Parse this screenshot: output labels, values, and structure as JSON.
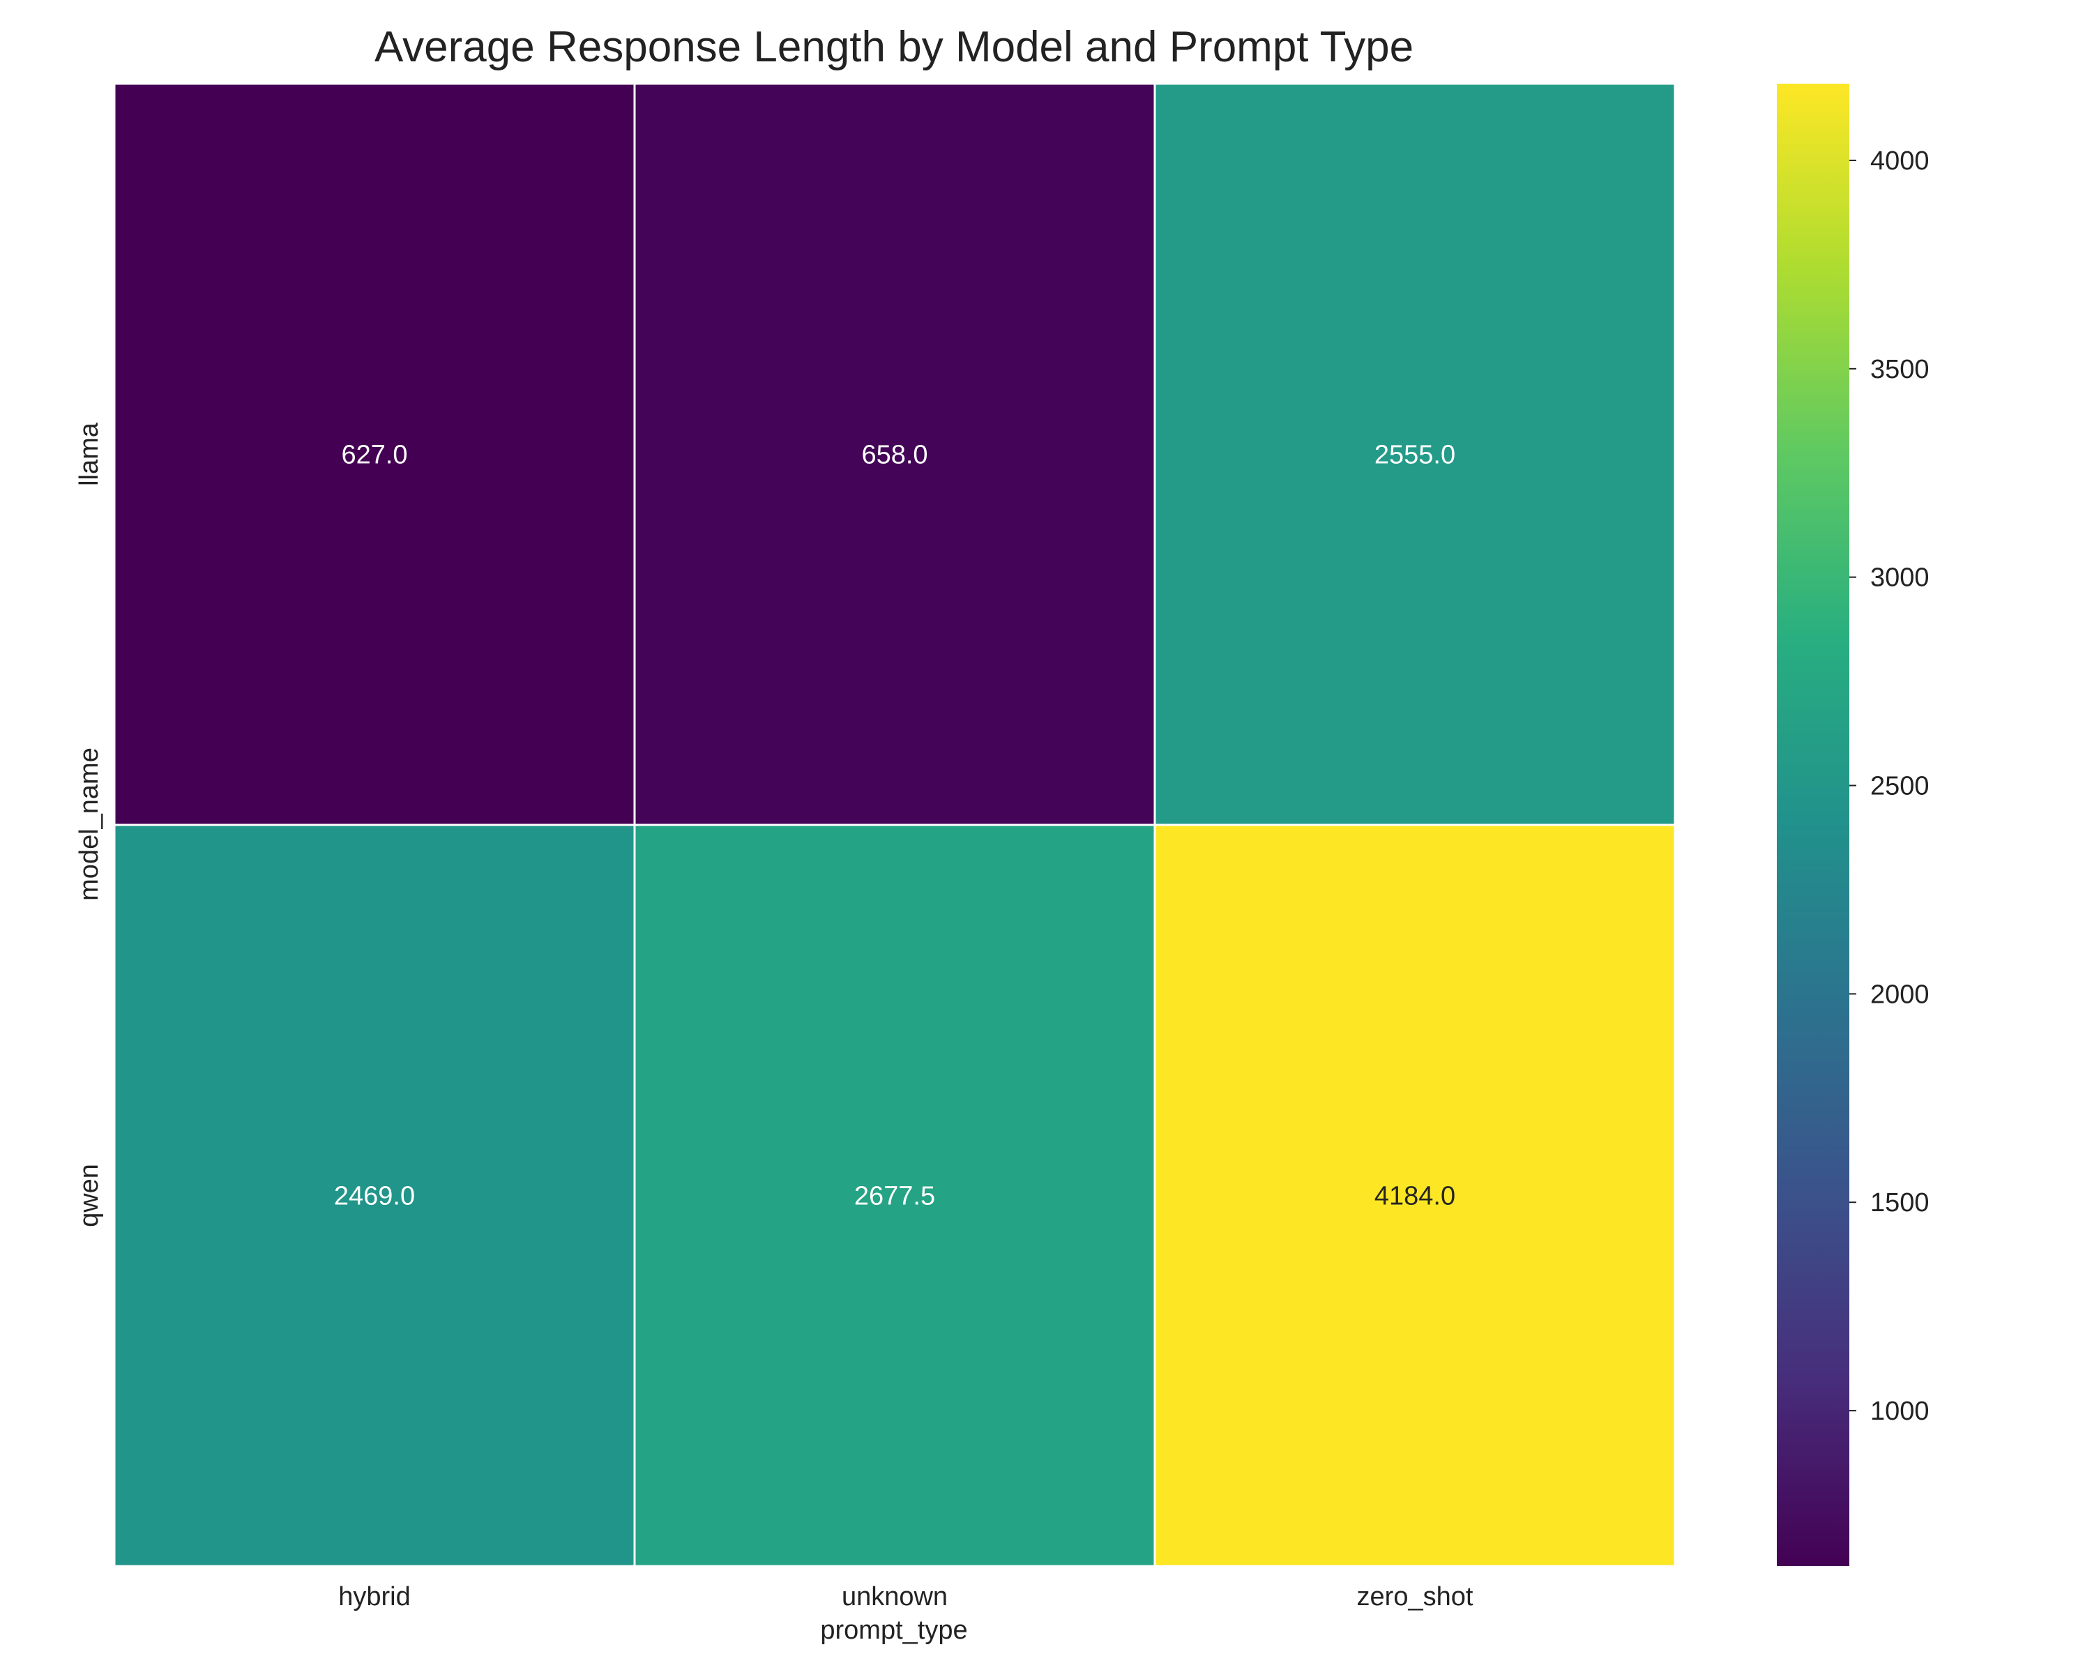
{
  "chart_data": {
    "type": "heatmap",
    "title": "Average Response Length by Model and Prompt Type",
    "xlabel": "prompt_type",
    "ylabel": "model_name",
    "x_categories": [
      "hybrid",
      "unknown",
      "zero_shot"
    ],
    "y_categories": [
      "llama",
      "qwen"
    ],
    "values": [
      [
        627.0,
        658.0,
        2555.0
      ],
      [
        2469.0,
        2677.5,
        4184.0
      ]
    ],
    "cell_labels": [
      [
        "627.0",
        "658.0",
        "2555.0"
      ],
      [
        "2469.0",
        "2677.5",
        "4184.0"
      ]
    ],
    "colormap": "viridis",
    "colorbar": {
      "vmin": 627.0,
      "vmax": 4184.0,
      "ticks": [
        1000,
        1500,
        2000,
        2500,
        3000,
        3500,
        4000
      ],
      "tick_labels": [
        "1000",
        "1500",
        "2000",
        "2500",
        "3000",
        "3500",
        "4000"
      ]
    },
    "grid": false,
    "cell_separator_color": "#ffffff"
  }
}
